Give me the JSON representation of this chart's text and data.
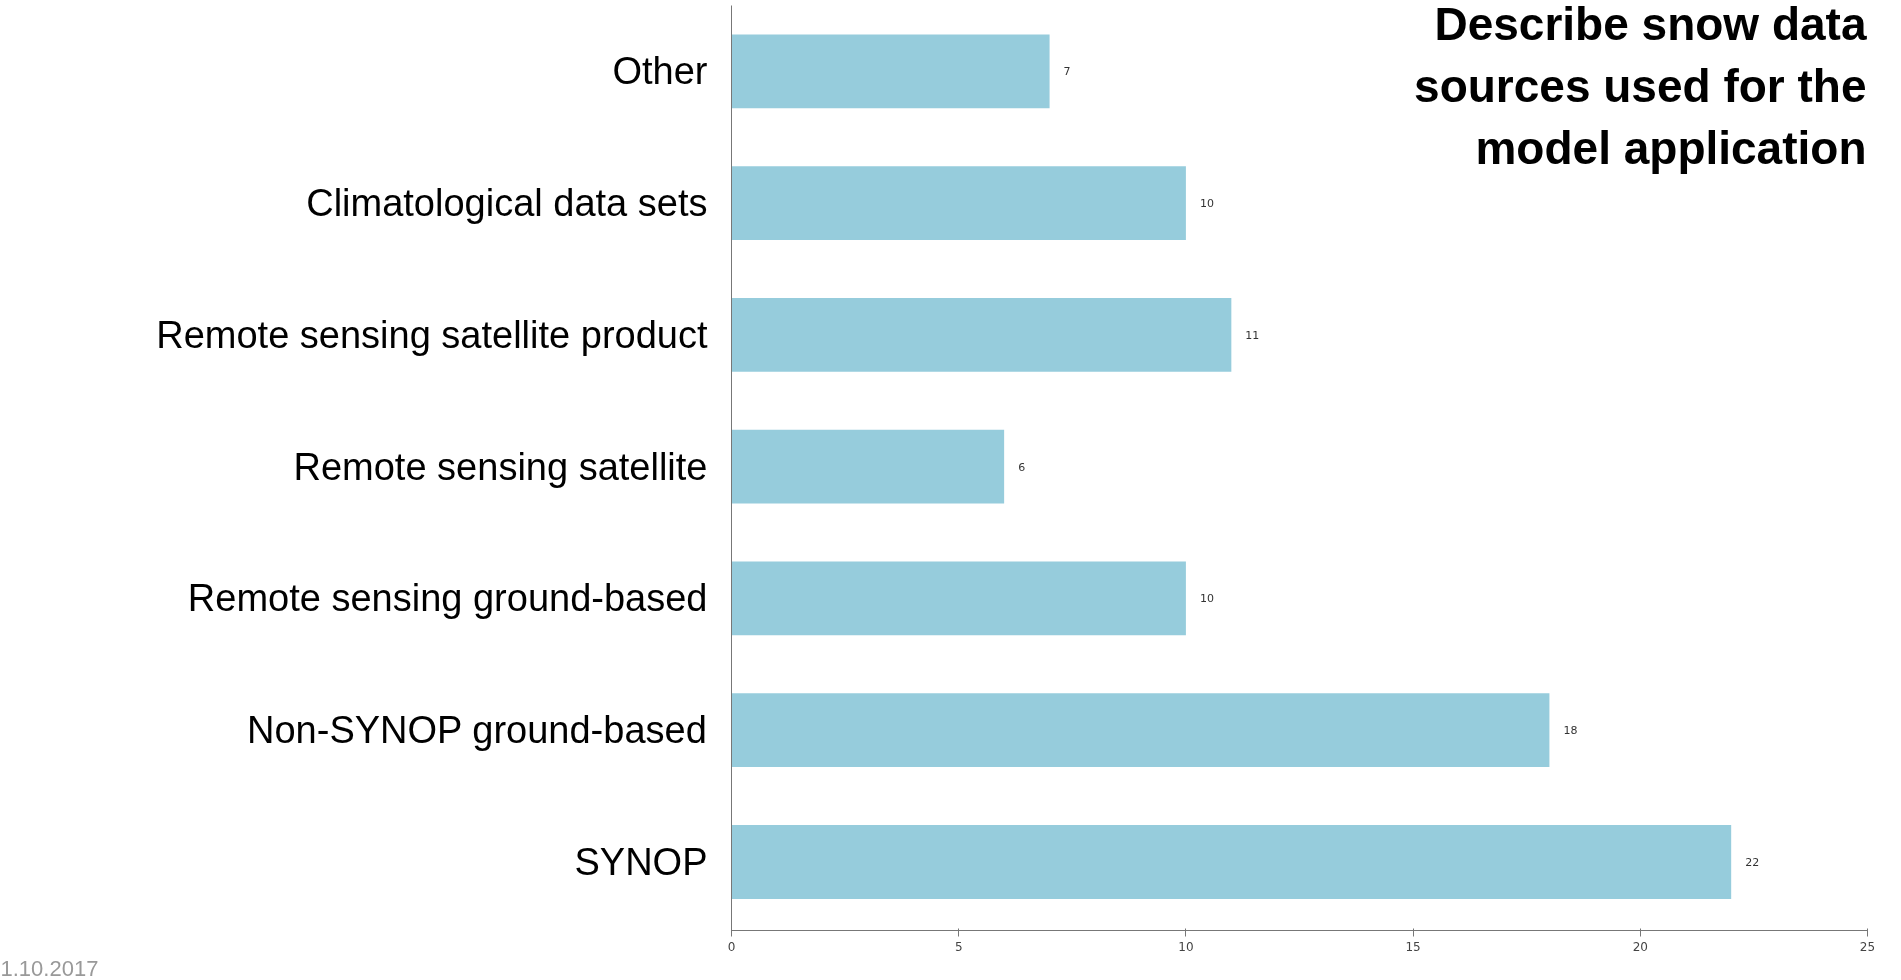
{
  "chart_data": {
    "type": "bar",
    "orientation": "horizontal",
    "title": "Describe snow data sources used for the model application",
    "categories": [
      "Other",
      "Climatological data sets",
      "Remote sensing satellite product",
      "Remote sensing satellite",
      "Remote sensing ground-based",
      "Non-SYNOP ground-based",
      "SYNOP"
    ],
    "values": [
      7,
      10,
      11,
      6,
      10,
      18,
      22
    ],
    "color": "#96ccdc",
    "xlim": [
      0,
      25
    ],
    "xticks": [
      0,
      5,
      10,
      15,
      20,
      25
    ],
    "grid": false,
    "data_labels": true,
    "annotations": [
      "1.10.2017"
    ]
  }
}
